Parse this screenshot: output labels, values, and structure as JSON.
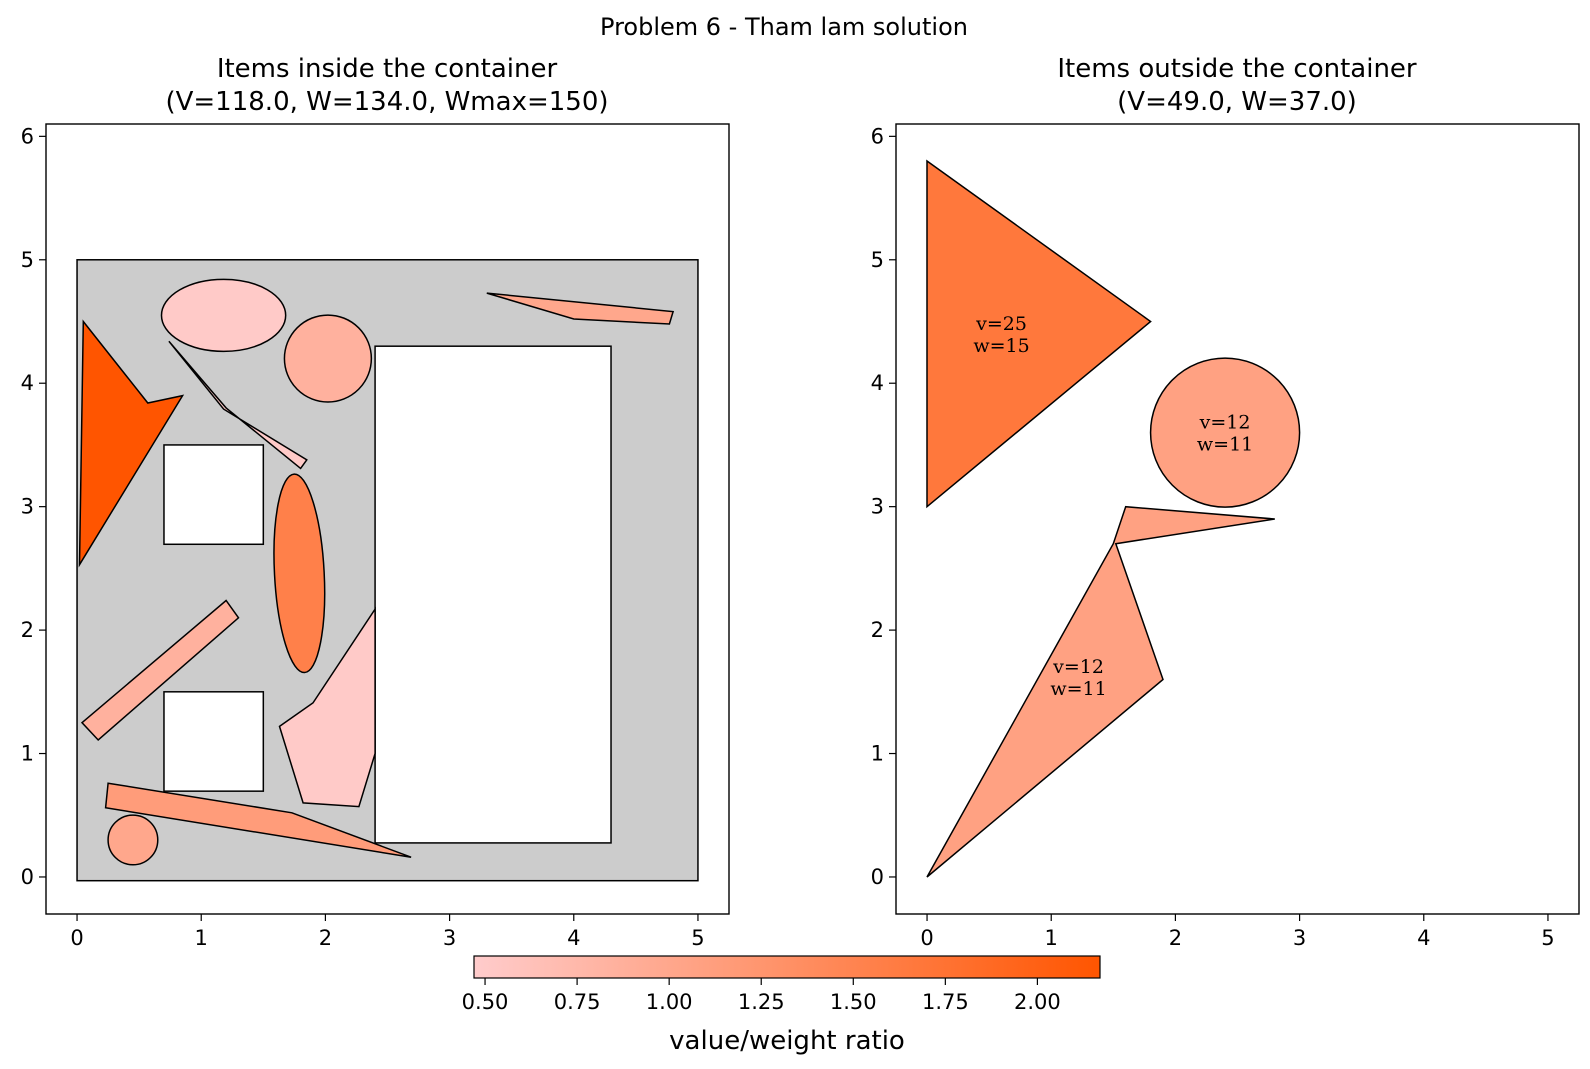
{
  "suptitle": "Problem 6 - Tham lam solution",
  "colors": {
    "container_fill": "#cccccc",
    "cmap_low": "#ffcccc",
    "cmap_high": "#ff5500",
    "edge": "#000000"
  },
  "colorbar": {
    "label": "value/weight ratio",
    "vmin": 0.47,
    "vmax": 2.17,
    "ticks": [
      "0.50",
      "0.75",
      "1.00",
      "1.25",
      "1.50",
      "1.75",
      "2.00"
    ]
  },
  "chart_data": [
    {
      "type": "shapes",
      "title_line1": "Items inside the container",
      "title_line2": "(V=118.0, W=134.0, Wmax=150)",
      "xlim": [
        -0.25,
        5.25
      ],
      "ylim": [
        -0.3,
        6.1
      ],
      "xticks": [
        "0",
        "1",
        "2",
        "3",
        "4",
        "5"
      ],
      "yticks": [
        "0",
        "1",
        "2",
        "3",
        "4",
        "5",
        "6"
      ],
      "container": {
        "x": 0,
        "y": 0,
        "w": 5,
        "h": 5
      },
      "holes": [
        {
          "x": 0.7,
          "y": 2.7,
          "w": 0.8,
          "h": 0.8
        },
        {
          "x": 0.7,
          "y": 0.7,
          "w": 0.8,
          "h": 0.8
        },
        {
          "x": 2.4,
          "y": 0.3,
          "w": 1.9,
          "h": 4.0
        }
      ],
      "items": [
        {
          "kind": "polygon",
          "ratio": 2.17,
          "points": [
            [
              0.05,
              4.5
            ],
            [
              0.57,
              3.84
            ],
            [
              0.85,
              3.9
            ],
            [
              0.02,
              2.53
            ]
          ]
        },
        {
          "kind": "ellipse",
          "ratio": 0.5,
          "cx": 1.18,
          "cy": 4.55,
          "rx": 0.5,
          "ry": 0.29
        },
        {
          "kind": "circle",
          "ratio": 0.85,
          "cx": 2.02,
          "cy": 4.2,
          "r": 0.35
        },
        {
          "kind": "polygon",
          "ratio": 0.5,
          "points": [
            [
              0.74,
              4.34
            ],
            [
              1.18,
              3.79
            ],
            [
              1.85,
              3.38
            ],
            [
              1.8,
              3.31
            ],
            [
              1.2,
              3.8
            ]
          ]
        },
        {
          "kind": "polygon",
          "ratio": 1.0,
          "points": [
            [
              3.3,
              4.73
            ],
            [
              4.8,
              4.58
            ],
            [
              4.77,
              4.48
            ],
            [
              4.0,
              4.52
            ]
          ]
        },
        {
          "kind": "ellipse",
          "ratio": 1.55,
          "cx": 1.79,
          "cy": 2.46,
          "rx": 0.2,
          "ry": 0.8,
          "rot": -3
        },
        {
          "kind": "polygon",
          "ratio": 0.85,
          "points": [
            [
              0.04,
              1.25
            ],
            [
              1.2,
              2.24
            ],
            [
              1.3,
              2.1
            ],
            [
              0.17,
              1.11
            ]
          ]
        },
        {
          "kind": "polygon",
          "ratio": 0.5,
          "points": [
            [
              1.63,
              1.22
            ],
            [
              1.9,
              1.41
            ],
            [
              2.4,
              2.17
            ],
            [
              2.4,
              1.0
            ],
            [
              2.27,
              0.57
            ],
            [
              1.82,
              0.6
            ]
          ]
        },
        {
          "kind": "polygon",
          "ratio": 1.15,
          "points": [
            [
              0.25,
              0.76
            ],
            [
              1.73,
              0.52
            ],
            [
              2.69,
              0.16
            ],
            [
              0.23,
              0.56
            ]
          ]
        },
        {
          "kind": "circle",
          "ratio": 1.0,
          "cx": 0.45,
          "cy": 0.3,
          "r": 0.2
        }
      ]
    },
    {
      "type": "shapes",
      "title_line1": "Items outside the container",
      "title_line2": "(V=49.0, W=37.0)",
      "xlim": [
        -0.25,
        5.25
      ],
      "ylim": [
        -0.3,
        6.1
      ],
      "xticks": [
        "0",
        "1",
        "2",
        "3",
        "4",
        "5"
      ],
      "yticks": [
        "0",
        "1",
        "2",
        "3",
        "4",
        "5",
        "6"
      ],
      "items": [
        {
          "kind": "polygon",
          "ratio": 1.67,
          "points": [
            [
              0.0,
              5.8
            ],
            [
              1.8,
              4.5
            ],
            [
              0.0,
              3.0
            ]
          ],
          "v": "v=25",
          "w": "w=15",
          "lx": 0.6,
          "ly": 4.4
        },
        {
          "kind": "circle",
          "ratio": 1.09,
          "cx": 2.4,
          "cy": 3.6,
          "r": 0.6,
          "v": "v=12",
          "w": "w=11",
          "lx": 2.4,
          "ly": 3.6
        },
        {
          "kind": "polygon",
          "ratio": 1.09,
          "points": [
            [
              0.0,
              0.0
            ],
            [
              1.5,
              2.7
            ],
            [
              1.6,
              3.0
            ],
            [
              2.8,
              2.9
            ],
            [
              1.52,
              2.7
            ],
            [
              1.9,
              1.6
            ]
          ],
          "v": "v=12",
          "w": "w=11",
          "lx": 1.22,
          "ly": 1.62
        }
      ]
    }
  ]
}
